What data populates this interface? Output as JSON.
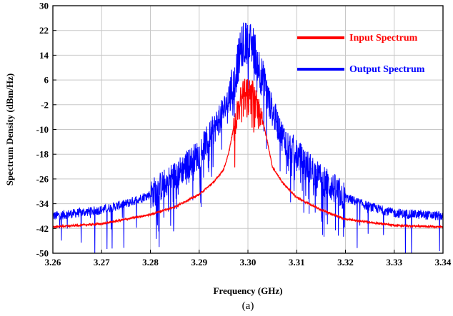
{
  "chart_data": {
    "type": "line",
    "xlabel": "Frequency (GHz)",
    "ylabel": "Spectrum Density (dBm/Hz)",
    "caption": "(a)",
    "xlim": [
      3.26,
      3.34
    ],
    "ylim": [
      -50,
      30
    ],
    "xticks": [
      3.26,
      3.27,
      3.28,
      3.29,
      3.3,
      3.31,
      3.32,
      3.33,
      3.34
    ],
    "xtick_labels": [
      "3.26",
      "3.27",
      "3.28",
      "3.29",
      "3.30",
      "3.31",
      "3.32",
      "3.33",
      "3.34"
    ],
    "yticks": [
      30,
      22,
      14,
      6,
      -2,
      -10,
      -18,
      -26,
      -34,
      -42,
      -50
    ],
    "ytick_labels": [
      "30",
      "22",
      "14",
      "6",
      "-2",
      "-10",
      "-18",
      "-26",
      "-34",
      "-42",
      "-50"
    ],
    "grid": true,
    "legend_position": "top-right",
    "series": [
      {
        "name": "Input Spectrum",
        "color": "#ff0000",
        "x": [
          3.26,
          3.27,
          3.28,
          3.285,
          3.29,
          3.293,
          3.295,
          3.296,
          3.297,
          3.298,
          3.299,
          3.3,
          3.301,
          3.302,
          3.303,
          3.304,
          3.305,
          3.307,
          3.31,
          3.315,
          3.32,
          3.33,
          3.34
        ],
        "values": [
          -41.5,
          -40.5,
          -37.5,
          -35,
          -31,
          -27,
          -23,
          -18,
          -10,
          -2,
          3,
          4,
          3,
          -1,
          -7,
          -14,
          -22,
          -27,
          -32,
          -36,
          -39,
          -41,
          -41.5
        ]
      },
      {
        "name": "Output Spectrum",
        "color": "#0000ff",
        "x": [
          3.26,
          3.27,
          3.275,
          3.28,
          3.285,
          3.29,
          3.293,
          3.295,
          3.297,
          3.298,
          3.299,
          3.3,
          3.301,
          3.302,
          3.303,
          3.305,
          3.307,
          3.31,
          3.315,
          3.32,
          3.325,
          3.33,
          3.34
        ],
        "values": [
          -38,
          -36,
          -34,
          -31,
          -25,
          -18,
          -10,
          -4,
          4,
          12,
          18,
          18,
          17,
          12,
          6,
          -4,
          -12,
          -18,
          -26,
          -32,
          -35,
          -37,
          -38
        ]
      }
    ]
  }
}
